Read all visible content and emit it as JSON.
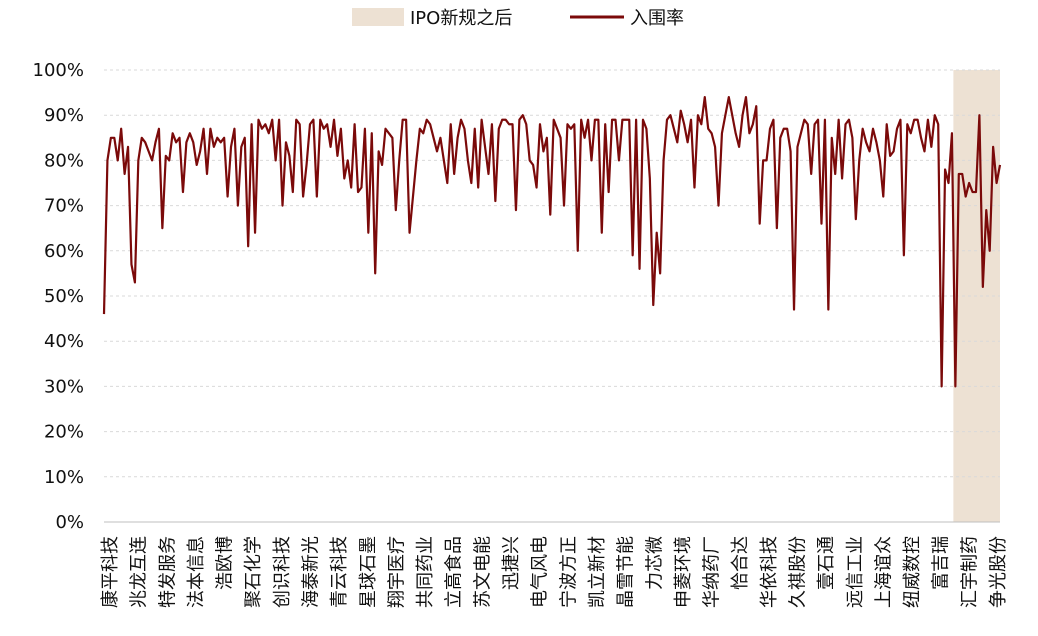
{
  "chart_data": {
    "type": "line",
    "title": "",
    "xlabel": "",
    "ylabel": "",
    "ylim": [
      0,
      100
    ],
    "y_ticks": [
      "0%",
      "10%",
      "20%",
      "30%",
      "40%",
      "50%",
      "60%",
      "70%",
      "80%",
      "90%",
      "100%"
    ],
    "grid": "horizontal dashed",
    "legend_position": "top",
    "legend": {
      "shade_label": "IPO新规之后",
      "line_label": "入围率"
    },
    "x_tick_labels": [
      "康平科技",
      "兆龙互连",
      "特发服务",
      "法本信息",
      "浩欧博",
      "聚石化学",
      "创识科技",
      "海泰新光",
      "青云科技",
      "星球石墨",
      "翔宇医疗",
      "共同药业",
      "立高食品",
      "苏文电能",
      "迅捷兴",
      "电气风电",
      "宁波方正",
      "凯立新材",
      "晶雪节能",
      "力芯微",
      "申菱环境",
      "华纳药厂",
      "恰合达",
      "华依科技",
      "久祺股份",
      "壹石通",
      "远信工业",
      "上海谊众",
      "纽威数控",
      "富吉瑞",
      "汇宇制药",
      "争光股份"
    ],
    "shaded_region_start_index": 248,
    "series": [
      {
        "name": "入围率",
        "color": "#7b0a0a",
        "values": [
          46,
          80,
          85,
          85,
          80,
          87,
          77,
          83,
          57,
          53,
          80,
          85,
          84,
          82,
          80,
          84,
          87,
          65,
          81,
          80,
          86,
          84,
          85,
          73,
          84,
          86,
          84,
          79,
          82,
          87,
          77,
          87,
          83,
          85,
          84,
          85,
          72,
          83,
          87,
          70,
          83,
          85,
          61,
          88,
          64,
          89,
          87,
          88,
          86,
          89,
          80,
          89,
          70,
          84,
          81,
          73,
          89,
          88,
          72,
          79,
          88,
          89,
          72,
          89,
          87,
          88,
          83,
          89,
          81,
          87,
          76,
          80,
          74,
          88,
          73,
          74,
          87,
          64,
          86,
          55,
          82,
          79,
          87,
          86,
          85,
          69,
          80,
          89,
          89,
          64,
          72,
          80,
          87,
          86,
          89,
          88,
          85,
          82,
          85,
          80,
          75,
          88,
          77,
          85,
          89,
          87,
          80,
          75,
          87,
          74,
          89,
          83,
          77,
          88,
          71,
          87,
          89,
          89,
          88,
          88,
          69,
          89,
          90,
          88,
          80,
          79,
          74,
          88,
          82,
          85,
          68,
          89,
          87,
          85,
          70,
          88,
          87,
          88,
          60,
          89,
          85,
          89,
          80,
          89,
          89,
          64,
          88,
          73,
          89,
          89,
          80,
          89,
          89,
          89,
          59,
          89,
          56,
          89,
          87,
          76,
          48,
          64,
          55,
          80,
          89,
          90,
          87,
          84,
          91,
          88,
          84,
          89,
          74,
          90,
          88,
          94,
          87,
          86,
          83,
          70,
          86,
          90,
          94,
          90,
          86,
          83,
          90,
          94,
          86,
          88,
          92,
          66,
          80,
          80,
          87,
          89,
          65,
          85,
          87,
          87,
          82,
          47,
          83,
          86,
          89,
          88,
          77,
          88,
          89,
          66,
          89,
          47,
          85,
          77,
          89,
          76,
          88,
          89,
          85,
          67,
          80,
          87,
          84,
          82,
          87,
          84,
          80,
          72,
          88,
          81,
          82,
          87,
          89,
          59,
          88,
          86,
          89,
          89,
          85,
          82,
          89,
          83,
          90,
          88,
          30,
          78,
          75,
          86,
          30,
          77,
          77,
          72,
          75,
          73,
          73,
          90,
          52,
          69,
          60,
          83,
          75,
          79
        ]
      }
    ]
  }
}
